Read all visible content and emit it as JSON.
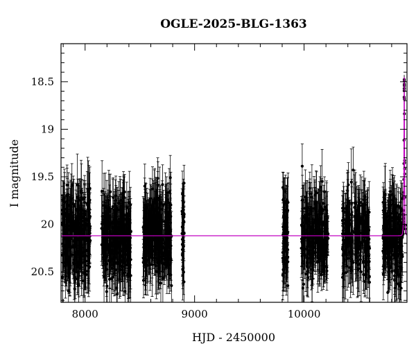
{
  "chart_data": {
    "type": "scatter",
    "title": "OGLE-2025-BLG-1363",
    "xlabel": "HJD - 2450000",
    "ylabel": "I magnitude",
    "xlim": [
      7780,
      10940
    ],
    "ylim": [
      20.82,
      18.1
    ],
    "y_inverted": true,
    "x_ticks": [
      8000,
      9000,
      10000
    ],
    "y_ticks": [
      18.5,
      19,
      19.5,
      20,
      20.5
    ],
    "x_tick_labels": [
      "8000",
      "9000",
      "10000"
    ],
    "y_tick_labels": [
      "18.5",
      "19",
      "19.5",
      "20",
      "20.5"
    ],
    "grid": false,
    "legend": "none",
    "colors": {
      "data": "#000000",
      "model": "#c000c0"
    },
    "baseline_mag": 20.12,
    "seasons": [
      {
        "start": 7790,
        "end": 8050,
        "n": 300
      },
      {
        "start": 8150,
        "end": 8420,
        "n": 300
      },
      {
        "start": 8530,
        "end": 8790,
        "n": 300
      },
      {
        "start": 8885,
        "end": 8905,
        "n": 40
      },
      {
        "start": 9805,
        "end": 9855,
        "n": 80
      },
      {
        "start": 9975,
        "end": 10220,
        "n": 230
      },
      {
        "start": 10350,
        "end": 10600,
        "n": 230
      },
      {
        "start": 10720,
        "end": 10900,
        "n": 200
      }
    ],
    "scatter_sigma": 0.22,
    "error_bar_typical": 0.25,
    "event": {
      "t0": 10915,
      "peak_mag": 18.45,
      "tE_days": 6
    },
    "series": [
      {
        "values_note": ""
      }
    ]
  }
}
